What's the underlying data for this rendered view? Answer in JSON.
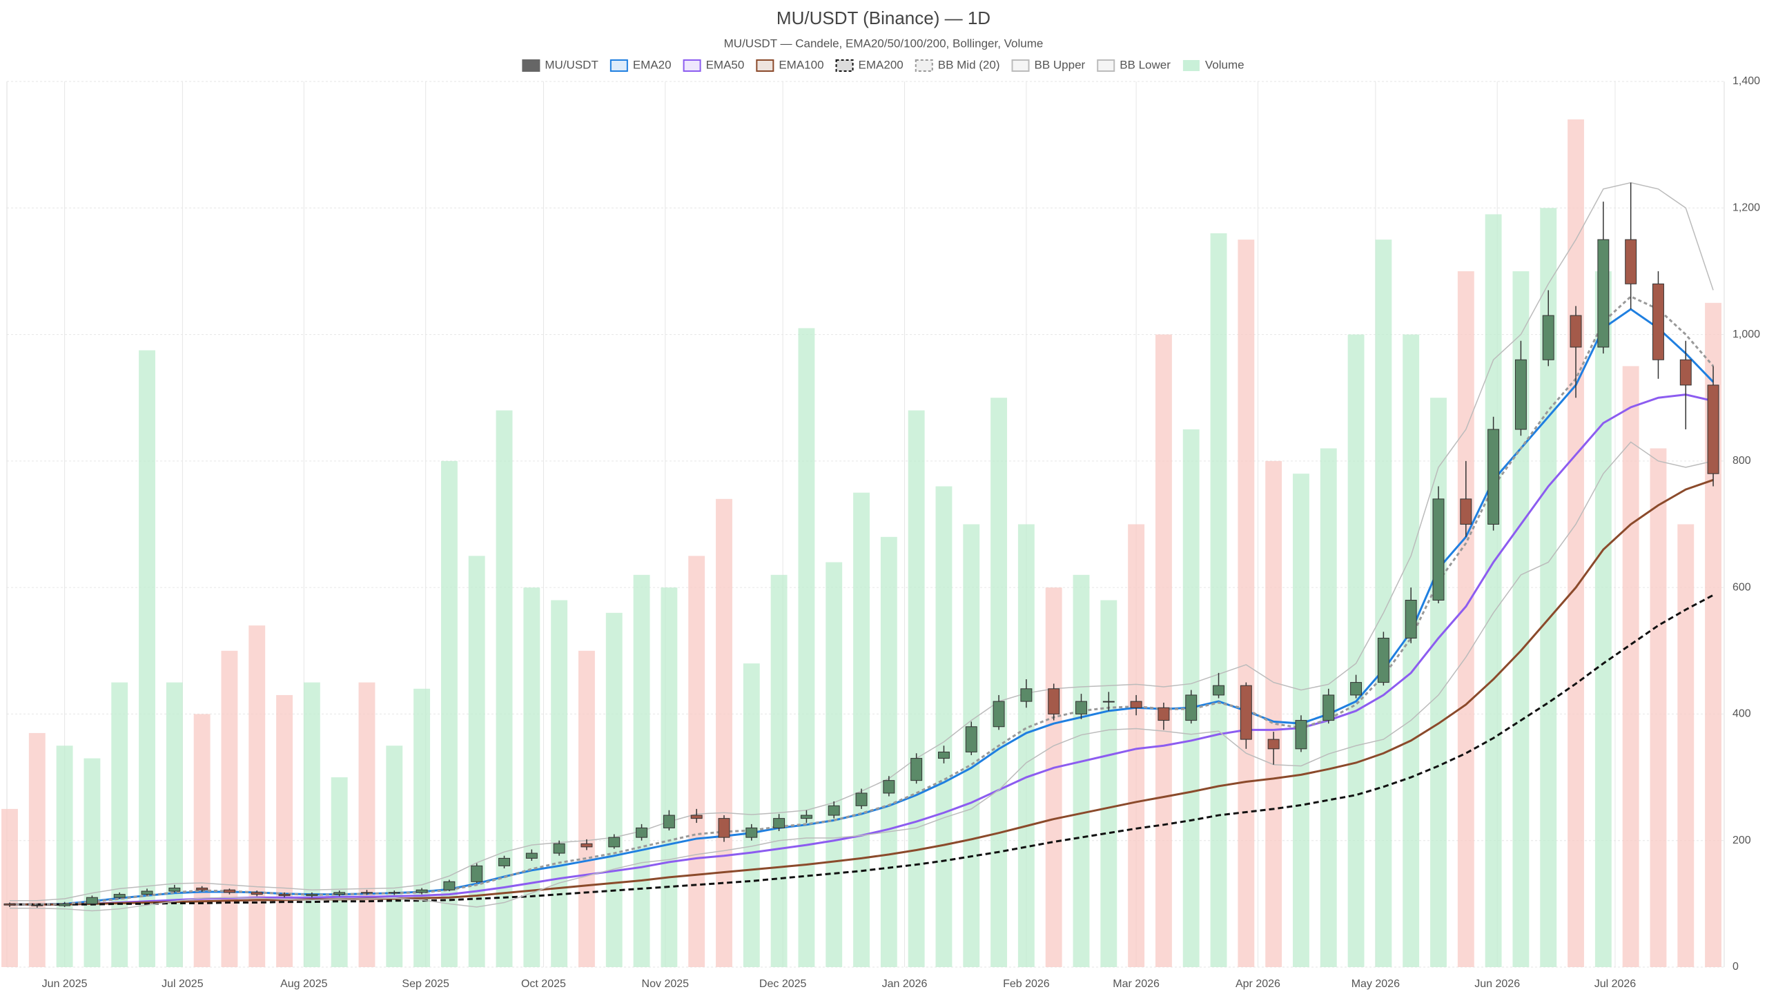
{
  "chart_data": {
    "type": "candlestick",
    "title": "MU/USDT (Binance) — 1D",
    "subtitle": "MU/USDT — Candele, EMA20/50/100/200, Bollinger, Volume",
    "categories": [
      null,
      null,
      null,
      null,
      null,
      null,
      null,
      null,
      null,
      null,
      null,
      null,
      null,
      null,
      null,
      null,
      null,
      null,
      null,
      null,
      null,
      null,
      null,
      null,
      null,
      null,
      null,
      null,
      null,
      null,
      null,
      null,
      null,
      null,
      null,
      null,
      null,
      null,
      null,
      null,
      null,
      null,
      null,
      null,
      null,
      null,
      null,
      null,
      null,
      null,
      null,
      null,
      null,
      null,
      null,
      null,
      null,
      null,
      null,
      null,
      null,
      null,
      null
    ],
    "xlim": [
      -0.1,
      62.4
    ],
    "xticks": [
      {
        "value": 2,
        "label": "Jun 2025"
      },
      {
        "value": 6.29,
        "label": "Jul 2025"
      },
      {
        "value": 10.71,
        "label": "Aug 2025"
      },
      {
        "value": 15.14,
        "label": "Sep 2025"
      },
      {
        "value": 19.43,
        "label": "Oct 2025"
      },
      {
        "value": 23.86,
        "label": "Nov 2025"
      },
      {
        "value": 28.14,
        "label": "Dec 2025"
      },
      {
        "value": 32.57,
        "label": "Jan 2026"
      },
      {
        "value": 37,
        "label": "Feb 2026"
      },
      {
        "value": 41,
        "label": "Mar 2026"
      },
      {
        "value": 45.43,
        "label": "Apr 2026"
      },
      {
        "value": 49.71,
        "label": "May 2026"
      },
      {
        "value": 54.14,
        "label": "Jun 2026"
      },
      {
        "value": 58.43,
        "label": "Jul 2026"
      }
    ],
    "ylim": [
      0,
      1400
    ],
    "yticks": [
      0,
      200,
      400,
      600,
      800,
      {
        "value": 1000,
        "label": "1,000"
      },
      {
        "value": 1200,
        "label": "1,200"
      },
      {
        "value": 1400,
        "label": "1,400"
      }
    ],
    "grid": true,
    "legend": "top",
    "series": [
      {
        "name": "MU/USDT",
        "type": "candlestick",
        "color": "#666666",
        "up_color": "#5b8a68",
        "down_color": "#a45a4a",
        "open": [
          100,
          98,
          97,
          100,
          110,
          115,
          120,
          125,
          122,
          118,
          115,
          113,
          115,
          118,
          117,
          118,
          122,
          135,
          160,
          172,
          180,
          195,
          190,
          205,
          220,
          240,
          235,
          205,
          220,
          235,
          240,
          255,
          275,
          295,
          330,
          340,
          380,
          420,
          440,
          400,
          420,
          420,
          410,
          390,
          430,
          445,
          360,
          345,
          390,
          430,
          450,
          520,
          580,
          740,
          700,
          850,
          960,
          1030,
          980,
          1150,
          1080,
          960,
          920
        ],
        "high": [
          102,
          100,
          103,
          113,
          118,
          124,
          130,
          128,
          124,
          121,
          118,
          118,
          121,
          122,
          121,
          125,
          138,
          164,
          176,
          186,
          200,
          202,
          210,
          226,
          248,
          250,
          240,
          226,
          242,
          248,
          262,
          282,
          302,
          338,
          350,
          388,
          430,
          455,
          448,
          432,
          435,
          430,
          418,
          438,
          465,
          450,
          372,
          398,
          440,
          462,
          530,
          600,
          760,
          800,
          870,
          990,
          1070,
          1045,
          1210,
          1240,
          1100,
          990,
          950
        ],
        "low": [
          95,
          94,
          95,
          99,
          108,
          113,
          118,
          119,
          115,
          112,
          110,
          110,
          112,
          114,
          114,
          115,
          120,
          133,
          156,
          168,
          176,
          185,
          187,
          200,
          216,
          228,
          198,
          200,
          215,
          228,
          235,
          250,
          270,
          290,
          322,
          335,
          375,
          410,
          390,
          392,
          405,
          398,
          375,
          385,
          425,
          345,
          320,
          340,
          385,
          425,
          445,
          512,
          575,
          680,
          690,
          840,
          950,
          900,
          970,
          1040,
          930,
          850,
          760
        ],
        "close": [
          98,
          97,
          100,
          110,
          115,
          120,
          125,
          122,
          118,
          115,
          113,
          115,
          118,
          117,
          118,
          122,
          135,
          160,
          172,
          180,
          195,
          190,
          205,
          220,
          240,
          235,
          205,
          220,
          235,
          240,
          255,
          275,
          295,
          330,
          340,
          380,
          420,
          440,
          400,
          420,
          420,
          410,
          390,
          430,
          445,
          360,
          345,
          390,
          430,
          450,
          520,
          580,
          740,
          700,
          850,
          960,
          1030,
          980,
          1150,
          1080,
          960,
          920,
          780
        ]
      },
      {
        "name": "EMA20",
        "type": "line",
        "color": "#1f7fe0",
        "values": [
          99,
          99,
          100,
          104,
          109,
          113,
          117,
          119,
          119,
          118,
          116,
          115,
          115,
          116,
          117,
          119,
          123,
          132,
          143,
          153,
          160,
          168,
          176,
          185,
          194,
          203,
          207,
          212,
          220,
          225,
          232,
          242,
          255,
          272,
          292,
          315,
          345,
          370,
          385,
          395,
          405,
          410,
          408,
          410,
          420,
          405,
          388,
          385,
          400,
          420,
          470,
          530,
          630,
          680,
          770,
          820,
          870,
          920,
          1010,
          1040,
          1010,
          970,
          925
        ]
      },
      {
        "name": "EMA50",
        "type": "line",
        "color": "#8c5cf0",
        "values": [
          99,
          99,
          99,
          100,
          102,
          104,
          106,
          108,
          109,
          110,
          110,
          110,
          111,
          111,
          112,
          113,
          115,
          120,
          126,
          133,
          140,
          146,
          152,
          158,
          166,
          172,
          176,
          181,
          187,
          193,
          200,
          208,
          218,
          230,
          244,
          260,
          280,
          300,
          315,
          325,
          335,
          345,
          350,
          358,
          368,
          375,
          375,
          378,
          390,
          405,
          430,
          465,
          520,
          570,
          640,
          700,
          760,
          810,
          860,
          885,
          900,
          905,
          895
        ]
      },
      {
        "name": "EMA100",
        "type": "line",
        "color": "#8b4a2b",
        "values": [
          99,
          99,
          99,
          100,
          101,
          102,
          103,
          104,
          105,
          106,
          106,
          107,
          107,
          108,
          108,
          109,
          110,
          113,
          117,
          121,
          125,
          129,
          133,
          137,
          142,
          146,
          150,
          154,
          158,
          162,
          167,
          172,
          178,
          185,
          193,
          202,
          212,
          223,
          234,
          243,
          252,
          261,
          269,
          277,
          286,
          293,
          298,
          304,
          313,
          323,
          338,
          358,
          385,
          415,
          455,
          500,
          550,
          600,
          660,
          700,
          730,
          755,
          770
        ]
      },
      {
        "name": "EMA200",
        "type": "line",
        "color": "#111111",
        "dash": true,
        "values": [
          99,
          99,
          99,
          99,
          100,
          100,
          101,
          101,
          102,
          102,
          103,
          103,
          104,
          104,
          105,
          105,
          106,
          108,
          110,
          112,
          115,
          118,
          121,
          124,
          127,
          130,
          133,
          136,
          140,
          144,
          148,
          152,
          157,
          162,
          168,
          175,
          182,
          190,
          198,
          205,
          212,
          219,
          225,
          232,
          240,
          245,
          250,
          256,
          264,
          272,
          285,
          300,
          318,
          338,
          362,
          390,
          418,
          448,
          480,
          510,
          540,
          565,
          588
        ]
      },
      {
        "name": "BB Mid (20)",
        "type": "line",
        "color": "#999999",
        "dash": true,
        "values": [
          99,
          99,
          100,
          103,
          108,
          113,
          118,
          121,
          120,
          118,
          116,
          114,
          115,
          116,
          117,
          118,
          122,
          130,
          142,
          155,
          165,
          172,
          180,
          190,
          200,
          210,
          214,
          216,
          222,
          226,
          232,
          243,
          256,
          275,
          296,
          320,
          350,
          378,
          395,
          405,
          410,
          412,
          408,
          408,
          418,
          408,
          385,
          378,
          392,
          415,
          460,
          520,
          610,
          670,
          760,
          820,
          880,
          930,
          1020,
          1060,
          1040,
          1000,
          950
        ]
      },
      {
        "name": "BB Upper",
        "type": "line",
        "color": "#bbbbbb",
        "values": [
          105,
          105,
          108,
          117,
          124,
          128,
          132,
          133,
          130,
          127,
          125,
          122,
          123,
          124,
          125,
          130,
          144,
          165,
          182,
          193,
          197,
          200,
          205,
          215,
          230,
          242,
          244,
          241,
          244,
          248,
          260,
          278,
          298,
          330,
          356,
          390,
          420,
          433,
          440,
          443,
          445,
          447,
          443,
          448,
          463,
          478,
          450,
          438,
          447,
          480,
          560,
          650,
          790,
          850,
          960,
          1000,
          1080,
          1150,
          1230,
          1240,
          1230,
          1200,
          1070
        ]
      },
      {
        "name": "BB Lower",
        "type": "line",
        "color": "#bbbbbb",
        "values": [
          93,
          93,
          92,
          89,
          92,
          98,
          104,
          109,
          110,
          109,
          107,
          106,
          107,
          108,
          109,
          106,
          100,
          95,
          102,
          117,
          133,
          144,
          155,
          165,
          170,
          178,
          184,
          191,
          200,
          204,
          204,
          208,
          214,
          220,
          236,
          250,
          280,
          323,
          350,
          367,
          375,
          377,
          373,
          368,
          373,
          338,
          320,
          318,
          337,
          350,
          360,
          390,
          430,
          490,
          560,
          620,
          640,
          700,
          780,
          830,
          800,
          790,
          800
        ]
      },
      {
        "name": "Volume",
        "type": "bar",
        "color": "#c9f0d8",
        "up_color": "#bfeccf",
        "down_color": "#f8c9c4",
        "values": [
          250,
          370,
          350,
          330,
          450,
          975,
          450,
          400,
          500,
          540,
          430,
          450,
          300,
          450,
          350,
          440,
          800,
          650,
          880,
          600,
          580,
          500,
          560,
          620,
          600,
          650,
          740,
          480,
          620,
          1010,
          640,
          750,
          680,
          880,
          760,
          700,
          900,
          700,
          600,
          620,
          580,
          700,
          1000,
          850,
          1160,
          1150,
          800,
          780,
          820,
          1000,
          1150,
          1000,
          900,
          1100,
          1190,
          1100,
          1200,
          1340,
          1100,
          950,
          820,
          700,
          1050
        ]
      }
    ]
  }
}
